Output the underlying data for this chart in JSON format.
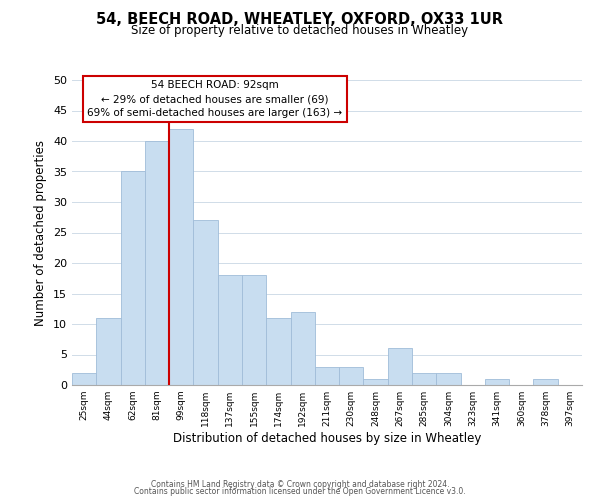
{
  "title": "54, BEECH ROAD, WHEATLEY, OXFORD, OX33 1UR",
  "subtitle": "Size of property relative to detached houses in Wheatley",
  "xlabel": "Distribution of detached houses by size in Wheatley",
  "ylabel": "Number of detached properties",
  "bin_labels": [
    "25sqm",
    "44sqm",
    "62sqm",
    "81sqm",
    "99sqm",
    "118sqm",
    "137sqm",
    "155sqm",
    "174sqm",
    "192sqm",
    "211sqm",
    "230sqm",
    "248sqm",
    "267sqm",
    "285sqm",
    "304sqm",
    "323sqm",
    "341sqm",
    "360sqm",
    "378sqm",
    "397sqm"
  ],
  "bar_heights": [
    2,
    11,
    35,
    40,
    42,
    27,
    18,
    18,
    11,
    12,
    3,
    3,
    1,
    6,
    2,
    2,
    0,
    1,
    0,
    1,
    0
  ],
  "bar_color": "#c8ddf0",
  "bar_edge_color": "#a0bcd8",
  "vline_x_index": 4,
  "vline_color": "#cc0000",
  "ylim": [
    0,
    50
  ],
  "yticks": [
    0,
    5,
    10,
    15,
    20,
    25,
    30,
    35,
    40,
    45,
    50
  ],
  "annotation_title": "54 BEECH ROAD: 92sqm",
  "annotation_line1": "← 29% of detached houses are smaller (69)",
  "annotation_line2": "69% of semi-detached houses are larger (163) →",
  "annotation_box_color": "#ffffff",
  "annotation_box_edge": "#cc0000",
  "footer_line1": "Contains HM Land Registry data © Crown copyright and database right 2024.",
  "footer_line2": "Contains public sector information licensed under the Open Government Licence v3.0.",
  "background_color": "#ffffff",
  "grid_color": "#d0dce8"
}
